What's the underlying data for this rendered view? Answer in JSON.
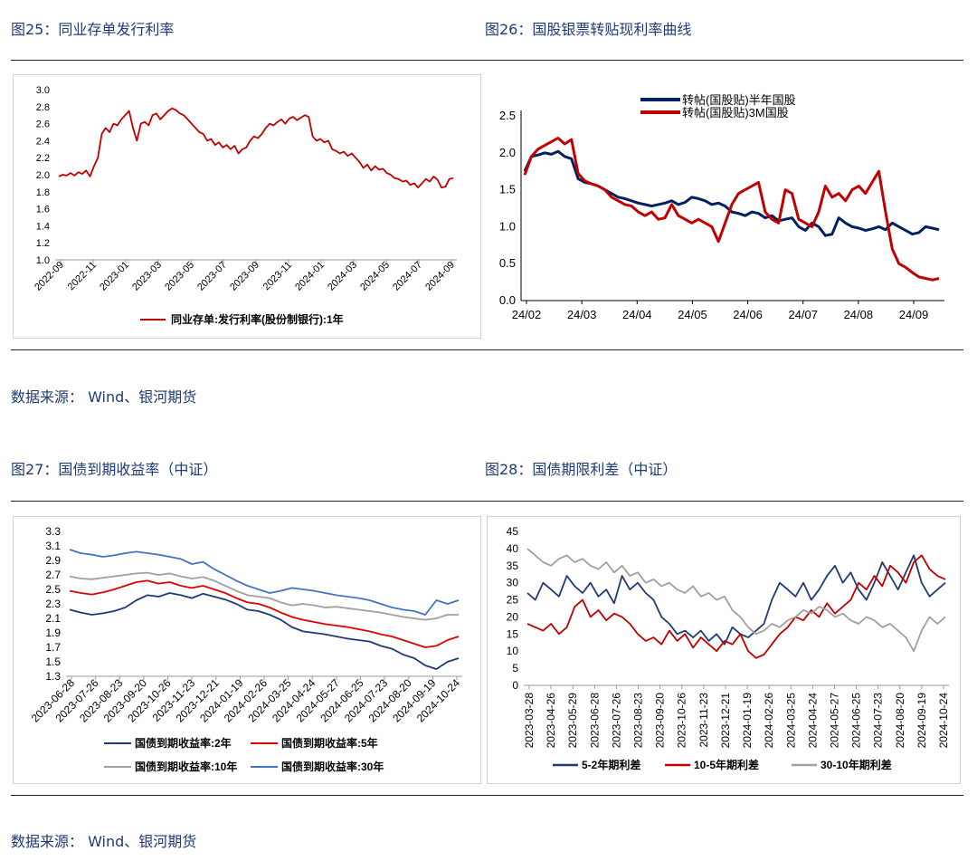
{
  "captions": {
    "fig25": "图25：同业存单发行利率",
    "fig26": "图26：国股银票转贴现利率曲线",
    "fig27": "图27：国债到期收益率（中证）",
    "fig28": "图28：国债期限利差（中证）"
  },
  "sources": {
    "row1": "数据来源： Wind、银河期货",
    "row2": "数据来源： Wind、银河期货"
  },
  "colors": {
    "red": "#c00000",
    "navy": "#1f3b73",
    "darkblue": "#002060",
    "gray": "#a0a0a0",
    "blue30": "#4472c4",
    "red2": "#e00000"
  },
  "chart_data": [
    {
      "id": "fig25",
      "type": "line",
      "ylim": [
        1.0,
        3.0
      ],
      "yticks": [
        "3.0",
        "2.8",
        "2.6",
        "2.4",
        "2.2",
        "2.0",
        "1.8",
        "1.6",
        "1.4",
        "1.2",
        "1.0"
      ],
      "xticks": [
        "2022-09",
        "2022-11",
        "2023-01",
        "2023-03",
        "2023-05",
        "2023-07",
        "2023-09",
        "2023-11",
        "2024-01",
        "2024-03",
        "2024-05",
        "2024-07",
        "2024-09"
      ],
      "series": [
        {
          "name": "同业存单:发行利率(股份制银行):1年",
          "color": "#c00000",
          "values": [
            1.98,
            2.0,
            1.99,
            2.02,
            1.99,
            2.03,
            2.01,
            2.05,
            1.98,
            2.1,
            2.2,
            2.48,
            2.55,
            2.5,
            2.6,
            2.58,
            2.65,
            2.7,
            2.75,
            2.55,
            2.4,
            2.6,
            2.62,
            2.58,
            2.7,
            2.72,
            2.65,
            2.7,
            2.75,
            2.78,
            2.76,
            2.72,
            2.7,
            2.65,
            2.6,
            2.55,
            2.5,
            2.48,
            2.4,
            2.42,
            2.35,
            2.38,
            2.32,
            2.35,
            2.3,
            2.34,
            2.25,
            2.3,
            2.32,
            2.4,
            2.45,
            2.43,
            2.48,
            2.55,
            2.6,
            2.58,
            2.62,
            2.65,
            2.6,
            2.66,
            2.68,
            2.64,
            2.67,
            2.7,
            2.68,
            2.45,
            2.4,
            2.42,
            2.38,
            2.4,
            2.3,
            2.28,
            2.25,
            2.27,
            2.22,
            2.25,
            2.2,
            2.15,
            2.08,
            2.12,
            2.05,
            2.1,
            2.06,
            2.07,
            2.02,
            2.0,
            1.96,
            1.95,
            1.92,
            1.93,
            1.88,
            1.9,
            1.85,
            1.9,
            1.95,
            1.92,
            1.98,
            1.94,
            1.85,
            1.86,
            1.95,
            1.96
          ]
        }
      ]
    },
    {
      "id": "fig26",
      "type": "line",
      "ylim": [
        0.0,
        2.5
      ],
      "yticks": [
        "2.5",
        "2.0",
        "1.5",
        "1.0",
        "0.5",
        "0.0"
      ],
      "xticks": [
        "24/02",
        "24/03",
        "24/04",
        "24/05",
        "24/06",
        "24/07",
        "24/08",
        "24/09"
      ],
      "legend_position": "top-center",
      "series": [
        {
          "name": "转帖(国股贴)半年国股",
          "color": "#002060",
          "values": [
            1.75,
            1.95,
            1.97,
            2.0,
            1.98,
            2.02,
            1.95,
            1.92,
            1.65,
            1.6,
            1.58,
            1.55,
            1.5,
            1.45,
            1.4,
            1.38,
            1.35,
            1.32,
            1.3,
            1.28,
            1.3,
            1.32,
            1.35,
            1.3,
            1.33,
            1.4,
            1.38,
            1.35,
            1.3,
            1.32,
            1.28,
            1.2,
            1.18,
            1.15,
            1.2,
            1.18,
            1.12,
            1.15,
            1.08,
            1.1,
            1.12,
            1.0,
            0.95,
            1.05,
            1.0,
            0.88,
            0.9,
            1.12,
            1.05,
            1.0,
            0.98,
            0.95,
            0.97,
            1.0,
            0.96,
            1.05,
            1.0,
            0.95,
            0.9,
            0.92,
            1.0,
            0.98,
            0.96
          ]
        },
        {
          "name": "转帖(国股贴)3M国股",
          "color": "#c00000",
          "values": [
            1.7,
            1.95,
            2.05,
            2.1,
            2.15,
            2.2,
            2.12,
            2.18,
            1.72,
            1.62,
            1.58,
            1.55,
            1.5,
            1.4,
            1.35,
            1.3,
            1.28,
            1.2,
            1.15,
            1.2,
            1.1,
            1.12,
            1.3,
            1.15,
            1.1,
            1.05,
            1.1,
            1.05,
            1.0,
            0.8,
            1.05,
            1.3,
            1.45,
            1.5,
            1.55,
            1.6,
            1.2,
            1.1,
            1.05,
            1.5,
            1.45,
            1.1,
            1.05,
            1.0,
            1.2,
            1.55,
            1.4,
            1.45,
            1.35,
            1.5,
            1.55,
            1.45,
            1.6,
            1.75,
            1.2,
            0.7,
            0.5,
            0.45,
            0.38,
            0.32,
            0.3,
            0.28,
            0.3
          ]
        }
      ]
    },
    {
      "id": "fig27",
      "type": "line",
      "ylim": [
        1.3,
        3.3
      ],
      "yticks": [
        "3.3",
        "3.1",
        "2.9",
        "2.7",
        "2.5",
        "2.3",
        "2.1",
        "1.9",
        "1.7",
        "1.5",
        "1.3"
      ],
      "xticks": [
        "2023-06-28",
        "2023-07-26",
        "2023-08-23",
        "2023-09-20",
        "2023-10-26",
        "2023-11-23",
        "2023-12-21",
        "2024-01-19",
        "2024-02-26",
        "2024-03-25",
        "2024-04-24",
        "2024-05-27",
        "2024-06-25",
        "2024-07-23",
        "2024-08-20",
        "2024-09-19",
        "2024-10-24"
      ],
      "series": [
        {
          "name": "国债到期收益率:2年",
          "color": "#1f3b73",
          "values": [
            2.22,
            2.18,
            2.15,
            2.17,
            2.2,
            2.25,
            2.35,
            2.42,
            2.4,
            2.45,
            2.42,
            2.38,
            2.44,
            2.4,
            2.36,
            2.3,
            2.22,
            2.2,
            2.15,
            2.08,
            1.98,
            1.92,
            1.9,
            1.88,
            1.85,
            1.82,
            1.8,
            1.78,
            1.72,
            1.68,
            1.6,
            1.55,
            1.45,
            1.4,
            1.5,
            1.55
          ]
        },
        {
          "name": "国债到期收益率:5年",
          "color": "#e00000",
          "values": [
            2.48,
            2.45,
            2.43,
            2.46,
            2.5,
            2.55,
            2.6,
            2.62,
            2.58,
            2.6,
            2.55,
            2.52,
            2.55,
            2.5,
            2.45,
            2.38,
            2.32,
            2.3,
            2.25,
            2.18,
            2.12,
            2.08,
            2.05,
            2.02,
            2.0,
            1.98,
            1.95,
            1.92,
            1.88,
            1.85,
            1.8,
            1.75,
            1.7,
            1.72,
            1.8,
            1.85
          ]
        },
        {
          "name": "国债到期收益率:10年",
          "color": "#a0a0a0",
          "values": [
            2.68,
            2.65,
            2.64,
            2.66,
            2.68,
            2.7,
            2.72,
            2.73,
            2.7,
            2.72,
            2.68,
            2.65,
            2.67,
            2.62,
            2.55,
            2.48,
            2.42,
            2.4,
            2.38,
            2.32,
            2.28,
            2.3,
            2.28,
            2.25,
            2.26,
            2.24,
            2.22,
            2.2,
            2.18,
            2.15,
            2.12,
            2.1,
            2.08,
            2.1,
            2.15,
            2.15
          ]
        },
        {
          "name": "国债到期收益率:30年",
          "color": "#4472c4",
          "values": [
            3.05,
            3.0,
            2.98,
            2.95,
            2.97,
            3.0,
            3.02,
            3.0,
            2.98,
            2.95,
            2.92,
            2.85,
            2.88,
            2.78,
            2.7,
            2.62,
            2.55,
            2.5,
            2.45,
            2.48,
            2.52,
            2.5,
            2.48,
            2.45,
            2.42,
            2.4,
            2.38,
            2.35,
            2.3,
            2.25,
            2.22,
            2.2,
            2.15,
            2.35,
            2.3,
            2.35
          ]
        }
      ]
    },
    {
      "id": "fig28",
      "type": "line",
      "ylim": [
        0,
        45
      ],
      "yticks": [
        "45",
        "40",
        "35",
        "30",
        "25",
        "20",
        "15",
        "10",
        "5",
        "0"
      ],
      "xticks": [
        "2023-03-28",
        "2023-04-26",
        "2023-05-29",
        "2023-06-28",
        "2023-07-26",
        "2023-08-23",
        "2023-09-20",
        "2023-10-26",
        "2023-11-23",
        "2023-12-21",
        "2024-01-19",
        "2024-02-26",
        "2024-03-25",
        "2024-04-24",
        "2024-05-27",
        "2024-06-25",
        "2024-07-23",
        "2024-08-20",
        "2024-09-19",
        "2024-10-24"
      ],
      "series": [
        {
          "name": "5-2年期利差",
          "color": "#1f3b73",
          "values": [
            27,
            25,
            30,
            28,
            26,
            32,
            29,
            27,
            30,
            26,
            28,
            24,
            32,
            28,
            30,
            27,
            25,
            20,
            18,
            15,
            16,
            14,
            16,
            13,
            15,
            12,
            17,
            15,
            14,
            16,
            18,
            25,
            30,
            28,
            26,
            30,
            25,
            28,
            32,
            35,
            30,
            33,
            28,
            25,
            30,
            36,
            32,
            28,
            33,
            38,
            30,
            26,
            28,
            30
          ]
        },
        {
          "name": "10-5年期利差",
          "color": "#c00000",
          "values": [
            18,
            17,
            16,
            18,
            15,
            17,
            23,
            25,
            20,
            22,
            19,
            21,
            20,
            18,
            15,
            13,
            14,
            12,
            16,
            13,
            15,
            11,
            14,
            12,
            10,
            13,
            12,
            15,
            10,
            8,
            9,
            12,
            15,
            17,
            20,
            19,
            22,
            20,
            24,
            21,
            23,
            25,
            30,
            28,
            32,
            29,
            35,
            33,
            30,
            36,
            38,
            34,
            32,
            31
          ]
        },
        {
          "name": "30-10年期利差",
          "color": "#a0a0a0",
          "values": [
            40,
            38,
            36,
            35,
            37,
            38,
            36,
            37,
            35,
            34,
            36,
            33,
            35,
            32,
            33,
            30,
            31,
            29,
            30,
            28,
            27,
            29,
            26,
            27,
            25,
            26,
            22,
            20,
            17,
            15,
            16,
            18,
            17,
            19,
            20,
            22,
            21,
            23,
            22,
            20,
            21,
            19,
            18,
            20,
            19,
            17,
            18,
            16,
            14,
            10,
            16,
            20,
            18,
            20
          ]
        }
      ]
    }
  ]
}
